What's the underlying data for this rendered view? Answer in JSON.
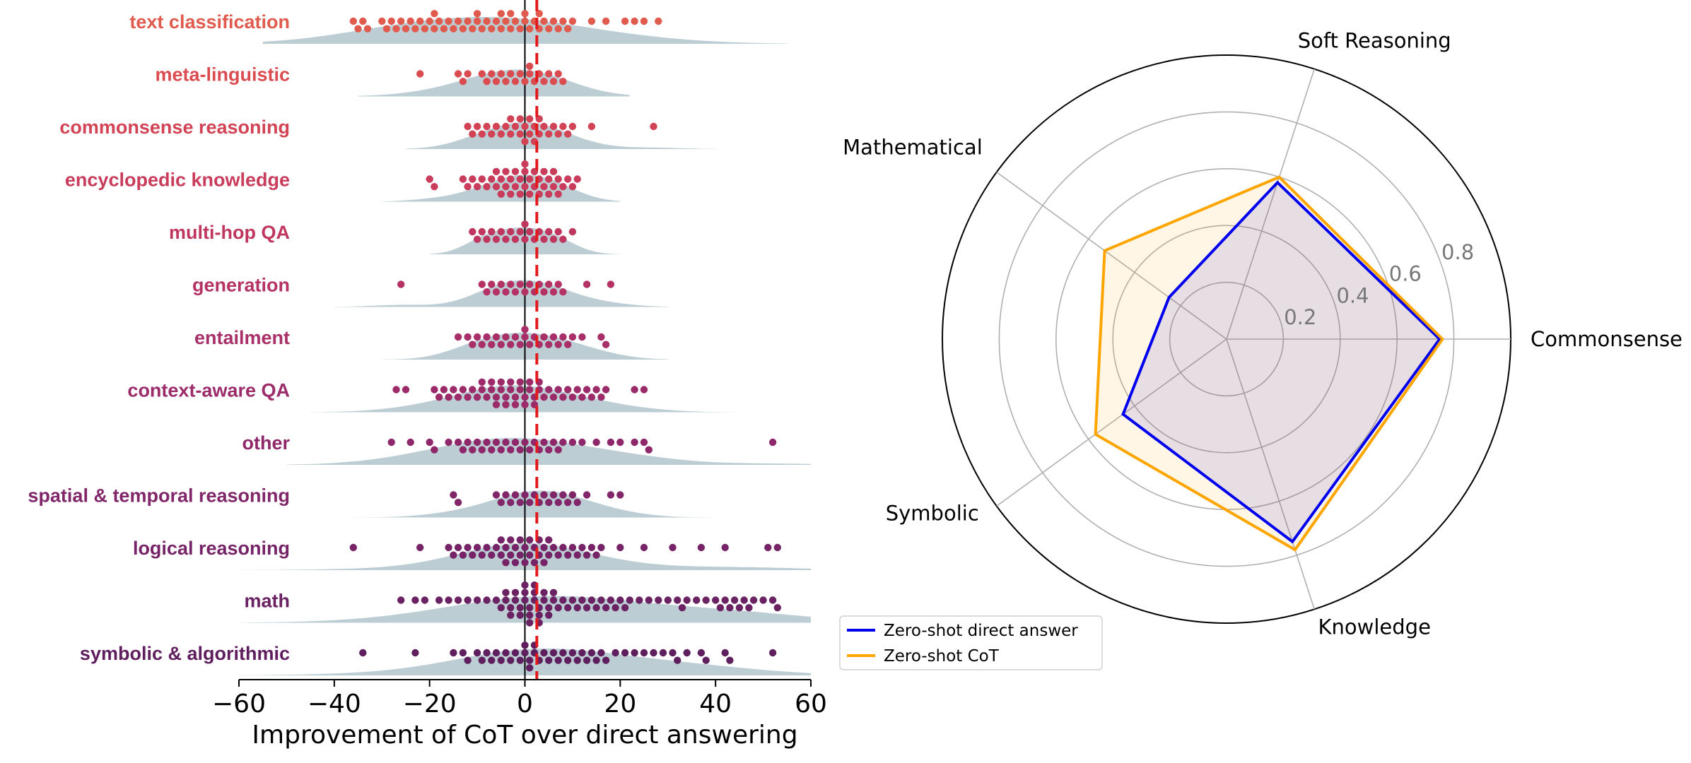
{
  "chart_data": [
    {
      "type": "swarm",
      "title": "",
      "xlabel": "Improvement of CoT over direct answering",
      "xlim": [
        -60,
        60
      ],
      "xticks": [
        "−60",
        "−40",
        "−20",
        "0",
        "20",
        "40",
        "60"
      ],
      "xtick_values": [
        -60,
        -40,
        -20,
        0,
        20,
        40,
        60
      ],
      "reference_line": {
        "type": "solid",
        "x": 0,
        "color": "#000000"
      },
      "mean_line": {
        "type": "dashed",
        "x": 2.5,
        "color": "#e31a1c"
      },
      "density_color": "#b5c9cf",
      "categories": [
        {
          "label": "text classification",
          "color": "#e05a4d",
          "values": [
            -36,
            -35,
            -34,
            -33,
            -30,
            -29,
            -28,
            -27,
            -26,
            -25,
            -24,
            -23,
            -22,
            -21,
            -20,
            -19,
            -19,
            -18,
            -17,
            -16,
            -15,
            -14,
            -13,
            -12,
            -11,
            -10,
            -10,
            -9,
            -8,
            -7,
            -6,
            -5,
            -5,
            -4,
            -3,
            -3,
            -2,
            -1,
            0,
            0,
            1,
            2,
            3,
            3,
            4,
            5,
            6,
            7,
            8,
            9,
            10,
            14,
            17,
            21,
            23,
            25,
            28
          ],
          "density_bw": 14,
          "density_range": [
            -55,
            55
          ]
        },
        {
          "label": "meta-linguistic",
          "color": "#da4c50",
          "values": [
            -22,
            -14,
            -13,
            -12,
            -9,
            -8,
            -7,
            -6,
            -5,
            -4,
            -3,
            -2,
            -1,
            0,
            1,
            1,
            2,
            3,
            4,
            5,
            6,
            7,
            8
          ],
          "density_bw": 8,
          "density_range": [
            -35,
            22
          ]
        },
        {
          "label": "commonsense reasoning",
          "color": "#d24455",
          "values": [
            -12,
            -11,
            -10,
            -9,
            -8,
            -7,
            -6,
            -5,
            -4,
            -3,
            -3,
            -2,
            -1,
            -1,
            0,
            0,
            1,
            1,
            2,
            2,
            3,
            3,
            4,
            5,
            6,
            7,
            8,
            9,
            10,
            14,
            27
          ],
          "density_bw": 6,
          "density_range": [
            -25,
            40
          ]
        },
        {
          "label": "encyclopedic knowledge",
          "color": "#c93c5b",
          "values": [
            -20,
            -19,
            -13,
            -12,
            -11,
            -10,
            -9,
            -8,
            -7,
            -6,
            -6,
            -5,
            -5,
            -4,
            -4,
            -3,
            -3,
            -2,
            -2,
            -1,
            -1,
            0,
            0,
            0,
            1,
            1,
            2,
            2,
            3,
            3,
            4,
            4,
            5,
            5,
            6,
            6,
            7,
            7,
            8,
            9,
            10,
            11
          ],
          "density_bw": 5,
          "density_range": [
            -30,
            20
          ]
        },
        {
          "label": "multi-hop QA",
          "color": "#bf375f",
          "values": [
            -11,
            -10,
            -9,
            -8,
            -7,
            -6,
            -5,
            -4,
            -3,
            -2,
            -1,
            0,
            0,
            1,
            2,
            3,
            4,
            5,
            6,
            7,
            8,
            10
          ],
          "density_bw": 4,
          "density_range": [
            -20,
            20
          ]
        },
        {
          "label": "generation",
          "color": "#b43364",
          "values": [
            -26,
            -9,
            -8,
            -7,
            -6,
            -5,
            -4,
            -3,
            -2,
            -1,
            0,
            1,
            2,
            3,
            4,
            5,
            6,
            7,
            8,
            13,
            18
          ],
          "density_bw": 6,
          "density_range": [
            -40,
            30
          ]
        },
        {
          "label": "entailment",
          "color": "#a92f68",
          "values": [
            -14,
            -12,
            -11,
            -10,
            -9,
            -8,
            -7,
            -6,
            -5,
            -4,
            -3,
            -2,
            -1,
            0,
            0,
            1,
            2,
            3,
            4,
            5,
            6,
            7,
            8,
            9,
            10,
            12,
            16,
            17
          ],
          "density_bw": 6,
          "density_range": [
            -30,
            30
          ]
        },
        {
          "label": "context-aware QA",
          "color": "#9c2b6a",
          "values": [
            -27,
            -25,
            -19,
            -18,
            -17,
            -16,
            -15,
            -14,
            -13,
            -12,
            -11,
            -10,
            -9,
            -9,
            -8,
            -7,
            -7,
            -6,
            -6,
            -5,
            -5,
            -4,
            -4,
            -3,
            -3,
            -2,
            -2,
            -1,
            -1,
            0,
            0,
            1,
            1,
            2,
            2,
            3,
            3,
            4,
            5,
            6,
            7,
            8,
            9,
            10,
            11,
            12,
            13,
            14,
            15,
            16,
            17,
            23,
            25
          ],
          "density_bw": 8,
          "density_range": [
            -45,
            45
          ]
        },
        {
          "label": "other",
          "color": "#8f286b",
          "values": [
            -28,
            -24,
            -20,
            -19,
            -16,
            -14,
            -13,
            -12,
            -11,
            -10,
            -9,
            -8,
            -7,
            -6,
            -5,
            -4,
            -3,
            -2,
            -1,
            0,
            1,
            2,
            3,
            4,
            5,
            6,
            7,
            8,
            10,
            12,
            15,
            18,
            20,
            23,
            25,
            26,
            52
          ],
          "density_bw": 11,
          "density_range": [
            -50,
            60
          ]
        },
        {
          "label": "spatial & temporal reasoning",
          "color": "#82266a",
          "values": [
            -15,
            -14,
            -6,
            -5,
            -4,
            -3,
            -2,
            -1,
            0,
            1,
            2,
            3,
            4,
            5,
            6,
            7,
            8,
            9,
            10,
            11,
            13,
            18,
            20
          ],
          "density_bw": 7,
          "density_range": [
            -40,
            40
          ]
        },
        {
          "label": "logical reasoning",
          "color": "#762467",
          "values": [
            -36,
            -22,
            -16,
            -15,
            -14,
            -13,
            -12,
            -11,
            -10,
            -9,
            -8,
            -7,
            -6,
            -5,
            -5,
            -4,
            -4,
            -3,
            -3,
            -2,
            -2,
            -1,
            -1,
            0,
            0,
            1,
            1,
            2,
            2,
            3,
            3,
            4,
            4,
            5,
            5,
            6,
            7,
            8,
            9,
            10,
            11,
            12,
            13,
            14,
            15,
            16,
            20,
            25,
            31,
            37,
            42,
            51,
            53
          ],
          "density_bw": 10,
          "density_range": [
            -60,
            60
          ]
        },
        {
          "label": "math",
          "color": "#6a2263",
          "values": [
            -26,
            -23,
            -21,
            -18,
            -16,
            -14,
            -12,
            -10,
            -8,
            -6,
            -5,
            -4,
            -4,
            -3,
            -3,
            -2,
            -2,
            -1,
            -1,
            0,
            0,
            0,
            1,
            1,
            1,
            2,
            2,
            2,
            3,
            3,
            3,
            4,
            4,
            5,
            5,
            6,
            6,
            7,
            8,
            9,
            10,
            11,
            12,
            13,
            14,
            15,
            16,
            17,
            18,
            19,
            20,
            21,
            22,
            24,
            26,
            28,
            30,
            32,
            33,
            34,
            36,
            38,
            40,
            41,
            42,
            43,
            44,
            45,
            46,
            47,
            48,
            50,
            52,
            53
          ],
          "density_bw": 16,
          "density_range": [
            -60,
            60
          ]
        },
        {
          "label": "symbolic & algorithmic",
          "color": "#5f1f5e",
          "values": [
            -34,
            -23,
            -15,
            -13,
            -12,
            -10,
            -9,
            -8,
            -7,
            -6,
            -5,
            -4,
            -3,
            -2,
            -1,
            0,
            0,
            1,
            1,
            2,
            2,
            3,
            4,
            5,
            6,
            7,
            8,
            9,
            10,
            11,
            12,
            13,
            14,
            15,
            16,
            17,
            19,
            21,
            23,
            25,
            27,
            29,
            31,
            32,
            34,
            37,
            38,
            42,
            43,
            52
          ],
          "density_bw": 13,
          "density_range": [
            -60,
            60
          ]
        }
      ]
    },
    {
      "type": "radar",
      "axes": [
        "Commonsense",
        "Soft Reasoning",
        "Mathematical",
        "Symbolic",
        "Knowledge"
      ],
      "axis_angles_deg": [
        0,
        72,
        144,
        216,
        288
      ],
      "rlim": [
        0,
        1.0
      ],
      "rticks": [
        0.2,
        0.4,
        0.6,
        0.8
      ],
      "rtick_labels": [
        "0.2",
        "0.4",
        "0.6",
        "0.8"
      ],
      "series": [
        {
          "name": "Zero-shot direct answer",
          "color": "#0000ee",
          "values": [
            0.75,
            0.58,
            0.25,
            0.45,
            0.75
          ],
          "fill_opacity": 0.1
        },
        {
          "name": "Zero-shot CoT",
          "color": "#ffa500",
          "values": [
            0.76,
            0.6,
            0.53,
            0.57,
            0.78
          ],
          "fill_opacity": 0.1
        }
      ],
      "legend": {
        "placement": "bottom-left",
        "entries": [
          "Zero-shot direct answer",
          "Zero-shot CoT"
        ]
      }
    }
  ]
}
